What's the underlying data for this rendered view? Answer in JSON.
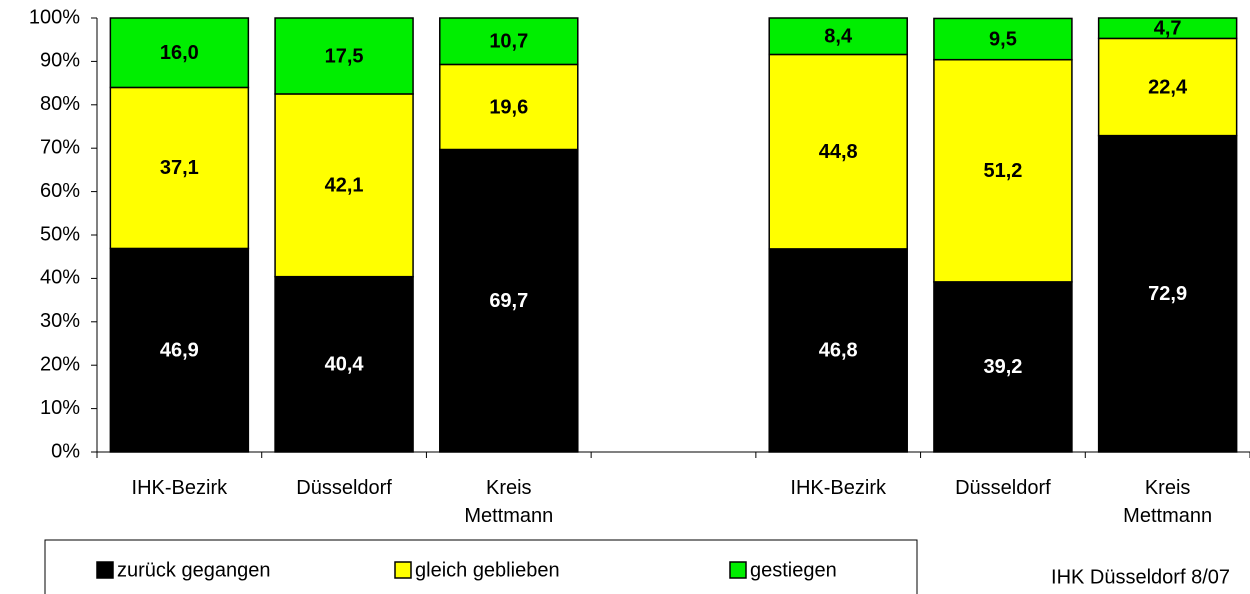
{
  "chart_data": {
    "type": "stacked_bar",
    "categories": [
      "IHK-Bezirk",
      "Düsseldorf",
      "Kreis Mettmann",
      null,
      "IHK-Bezirk",
      "Düsseldorf",
      "Kreis Mettmann"
    ],
    "series": [
      {
        "name": "zurück gegangen",
        "color": "#000000",
        "values": [
          46.9,
          40.4,
          69.7,
          null,
          46.8,
          39.2,
          72.9
        ],
        "value_labels": [
          "46,9",
          "40,4",
          "69,7",
          null,
          "46,8",
          "39,2",
          "72,9"
        ]
      },
      {
        "name": "gleich geblieben",
        "color": "#ffff00",
        "values": [
          37.1,
          42.1,
          19.6,
          null,
          44.8,
          51.2,
          22.4
        ],
        "value_labels": [
          "37,1",
          "42,1",
          "19,6",
          null,
          "44,8",
          "51,2",
          "22,4"
        ]
      },
      {
        "name": "gestiegen",
        "color": "#00ee00",
        "values": [
          16.0,
          17.5,
          10.7,
          null,
          8.4,
          9.5,
          4.7
        ],
        "value_labels": [
          "16,0",
          "17,5",
          "10,7",
          null,
          "8,4",
          "9,5",
          "4,7"
        ]
      }
    ],
    "ylim": [
      0,
      100
    ],
    "yticks": [
      {
        "value": 0,
        "label": "0%"
      },
      {
        "value": 10,
        "label": "10%"
      },
      {
        "value": 20,
        "label": "20%"
      },
      {
        "value": 30,
        "label": "30%"
      },
      {
        "value": 40,
        "label": "40%"
      },
      {
        "value": 50,
        "label": "50%"
      },
      {
        "value": 60,
        "label": "60%"
      },
      {
        "value": 70,
        "label": "70%"
      },
      {
        "value": 80,
        "label": "80%"
      },
      {
        "value": 90,
        "label": "90%"
      },
      {
        "value": 100,
        "label": "100%"
      }
    ],
    "grid": false,
    "legend": "bottom",
    "source": "IHK Düsseldorf 8/07"
  }
}
